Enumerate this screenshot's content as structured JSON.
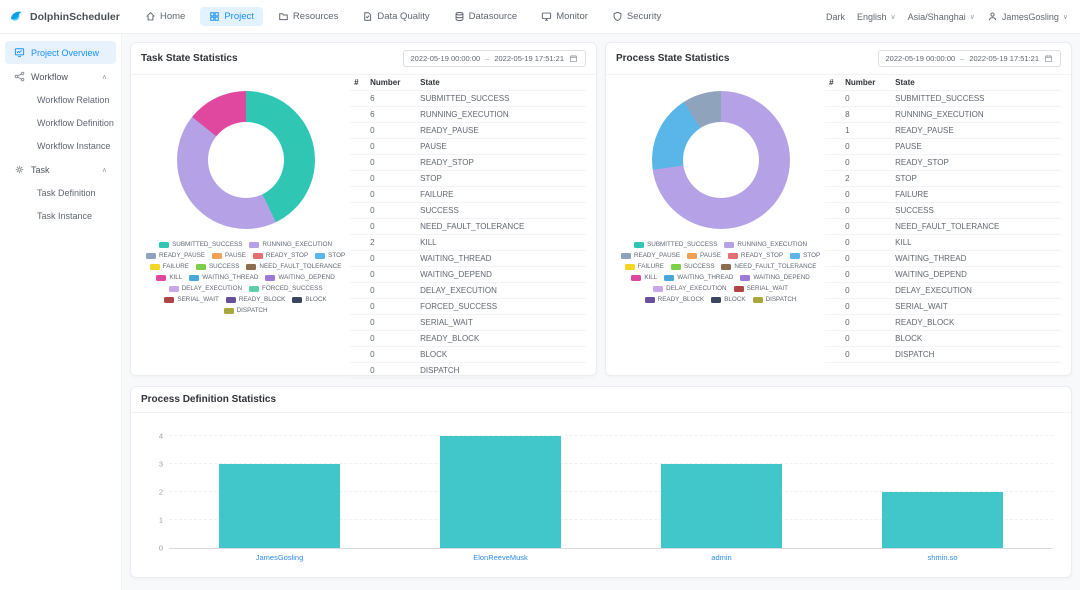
{
  "colors": {
    "accent": "#1890ff",
    "bar": "#41c7c9",
    "category_link": "#2d8cf0"
  },
  "state_colors": {
    "SUBMITTED_SUCCESS": "#2fc6b4",
    "RUNNING_EXECUTION": "#b5a2e6",
    "READY_PAUSE": "#8fa3bd",
    "PAUSE": "#f2a154",
    "READY_STOP": "#e66e6e",
    "STOP": "#5ab6e8",
    "FAILURE": "#f3d524",
    "SUCCESS": "#7ccf49",
    "NEED_FAULT_TOLERANCE": "#8a6d4e",
    "KILL": "#e0489f",
    "WAITING_THREAD": "#49a8d9",
    "WAITING_DEPEND": "#9e79d9",
    "DELAY_EXECUTION": "#c9a7e8",
    "FORCED_SUCCESS": "#5fd0a5",
    "SERIAL_WAIT": "#b04545",
    "READY_BLOCK": "#6a4f9e",
    "BLOCK": "#39465e",
    "DISPATCH": "#a8a83c"
  },
  "topnav": {
    "brand": "DolphinScheduler",
    "items": [
      {
        "label": "Home",
        "icon": "home-icon",
        "active": false
      },
      {
        "label": "Project",
        "icon": "project-icon",
        "active": true
      },
      {
        "label": "Resources",
        "icon": "folder-icon",
        "active": false
      },
      {
        "label": "Data Quality",
        "icon": "data-quality-icon",
        "active": false
      },
      {
        "label": "Datasource",
        "icon": "datasource-icon",
        "active": false
      },
      {
        "label": "Monitor",
        "icon": "monitor-icon",
        "active": false
      },
      {
        "label": "Security",
        "icon": "security-icon",
        "active": false
      }
    ],
    "right": [
      {
        "label": "Dark",
        "caret": false,
        "user": false
      },
      {
        "label": "English",
        "caret": true,
        "user": false
      },
      {
        "label": "Asia/Shanghai",
        "caret": true,
        "user": false
      },
      {
        "label": "JamesGosling",
        "caret": true,
        "user": true
      }
    ]
  },
  "sidebar": {
    "items": [
      {
        "label": "Project Overview",
        "icon": "overview-icon",
        "level": 1,
        "active": true,
        "caret": ""
      },
      {
        "label": "Workflow",
        "icon": "workflow-icon",
        "level": 1,
        "active": false,
        "caret": "up"
      },
      {
        "label": "Workflow Relation",
        "level": 2,
        "active": false,
        "caret": ""
      },
      {
        "label": "Workflow Definition",
        "level": 2,
        "active": false,
        "caret": ""
      },
      {
        "label": "Workflow Instance",
        "level": 2,
        "active": false,
        "caret": ""
      },
      {
        "label": "Task",
        "icon": "task-icon",
        "level": 1,
        "active": false,
        "caret": "up"
      },
      {
        "label": "Task Definition",
        "level": 2,
        "active": false,
        "caret": ""
      },
      {
        "label": "Task Instance",
        "level": 2,
        "active": false,
        "caret": ""
      }
    ]
  },
  "date_range": {
    "start": "2022-05-19 00:00:00",
    "separator": "–",
    "end": "2022-05-19 17:51:21"
  },
  "task_card": {
    "title": "Task State Statistics",
    "table_headers": [
      "#",
      "Number",
      "State"
    ],
    "rows": [
      {
        "number": 6,
        "state": "SUBMITTED_SUCCESS"
      },
      {
        "number": 6,
        "state": "RUNNING_EXECUTION"
      },
      {
        "number": 0,
        "state": "READY_PAUSE"
      },
      {
        "number": 0,
        "state": "PAUSE"
      },
      {
        "number": 0,
        "state": "READY_STOP"
      },
      {
        "number": 0,
        "state": "STOP"
      },
      {
        "number": 0,
        "state": "FAILURE"
      },
      {
        "number": 0,
        "state": "SUCCESS"
      },
      {
        "number": 0,
        "state": "NEED_FAULT_TOLERANCE"
      },
      {
        "number": 2,
        "state": "KILL"
      },
      {
        "number": 0,
        "state": "WAITING_THREAD"
      },
      {
        "number": 0,
        "state": "WAITING_DEPEND"
      },
      {
        "number": 0,
        "state": "DELAY_EXECUTION"
      },
      {
        "number": 0,
        "state": "FORCED_SUCCESS"
      },
      {
        "number": 0,
        "state": "SERIAL_WAIT"
      },
      {
        "number": 0,
        "state": "READY_BLOCK"
      },
      {
        "number": 0,
        "state": "BLOCK"
      },
      {
        "number": 0,
        "state": "DISPATCH"
      }
    ]
  },
  "process_card": {
    "title": "Process State Statistics",
    "table_headers": [
      "#",
      "Number",
      "State"
    ],
    "rows": [
      {
        "number": 0,
        "state": "SUBMITTED_SUCCESS"
      },
      {
        "number": 8,
        "state": "RUNNING_EXECUTION"
      },
      {
        "number": 1,
        "state": "READY_PAUSE"
      },
      {
        "number": 0,
        "state": "PAUSE"
      },
      {
        "number": 0,
        "state": "READY_STOP"
      },
      {
        "number": 2,
        "state": "STOP"
      },
      {
        "number": 0,
        "state": "FAILURE"
      },
      {
        "number": 0,
        "state": "SUCCESS"
      },
      {
        "number": 0,
        "state": "NEED_FAULT_TOLERANCE"
      },
      {
        "number": 0,
        "state": "KILL"
      },
      {
        "number": 0,
        "state": "WAITING_THREAD"
      },
      {
        "number": 0,
        "state": "WAITING_DEPEND"
      },
      {
        "number": 0,
        "state": "DELAY_EXECUTION"
      },
      {
        "number": 0,
        "state": "SERIAL_WAIT"
      },
      {
        "number": 0,
        "state": "READY_BLOCK"
      },
      {
        "number": 0,
        "state": "BLOCK"
      },
      {
        "number": 0,
        "state": "DISPATCH"
      }
    ]
  },
  "definition_card": {
    "title": "Process Definition Statistics"
  },
  "chart_data": [
    {
      "type": "pie",
      "name": "task-state-donut",
      "title": "Task State Statistics",
      "inner_radius_pct": 55,
      "legend_position": "bottom",
      "segments": [
        {
          "label": "SUBMITTED_SUCCESS",
          "value": 6
        },
        {
          "label": "RUNNING_EXECUTION",
          "value": 6
        },
        {
          "label": "KILL",
          "value": 2
        }
      ]
    },
    {
      "type": "pie",
      "name": "process-state-donut",
      "title": "Process State Statistics",
      "inner_radius_pct": 55,
      "legend_position": "bottom",
      "segments": [
        {
          "label": "RUNNING_EXECUTION",
          "value": 8
        },
        {
          "label": "STOP",
          "value": 2
        },
        {
          "label": "READY_PAUSE",
          "value": 1
        }
      ]
    },
    {
      "type": "bar",
      "name": "process-definition-bar",
      "title": "Process Definition Statistics",
      "categories": [
        "JamesGosling",
        "ElonReeveMusk",
        "admin",
        "shmin.so"
      ],
      "values": [
        3,
        4,
        3,
        2
      ],
      "yticks": [
        0,
        1,
        2,
        3,
        4
      ],
      "ylim": [
        0,
        4.4
      ],
      "xlabel": "",
      "ylabel": "",
      "grid": true,
      "legend_position": "none"
    }
  ]
}
